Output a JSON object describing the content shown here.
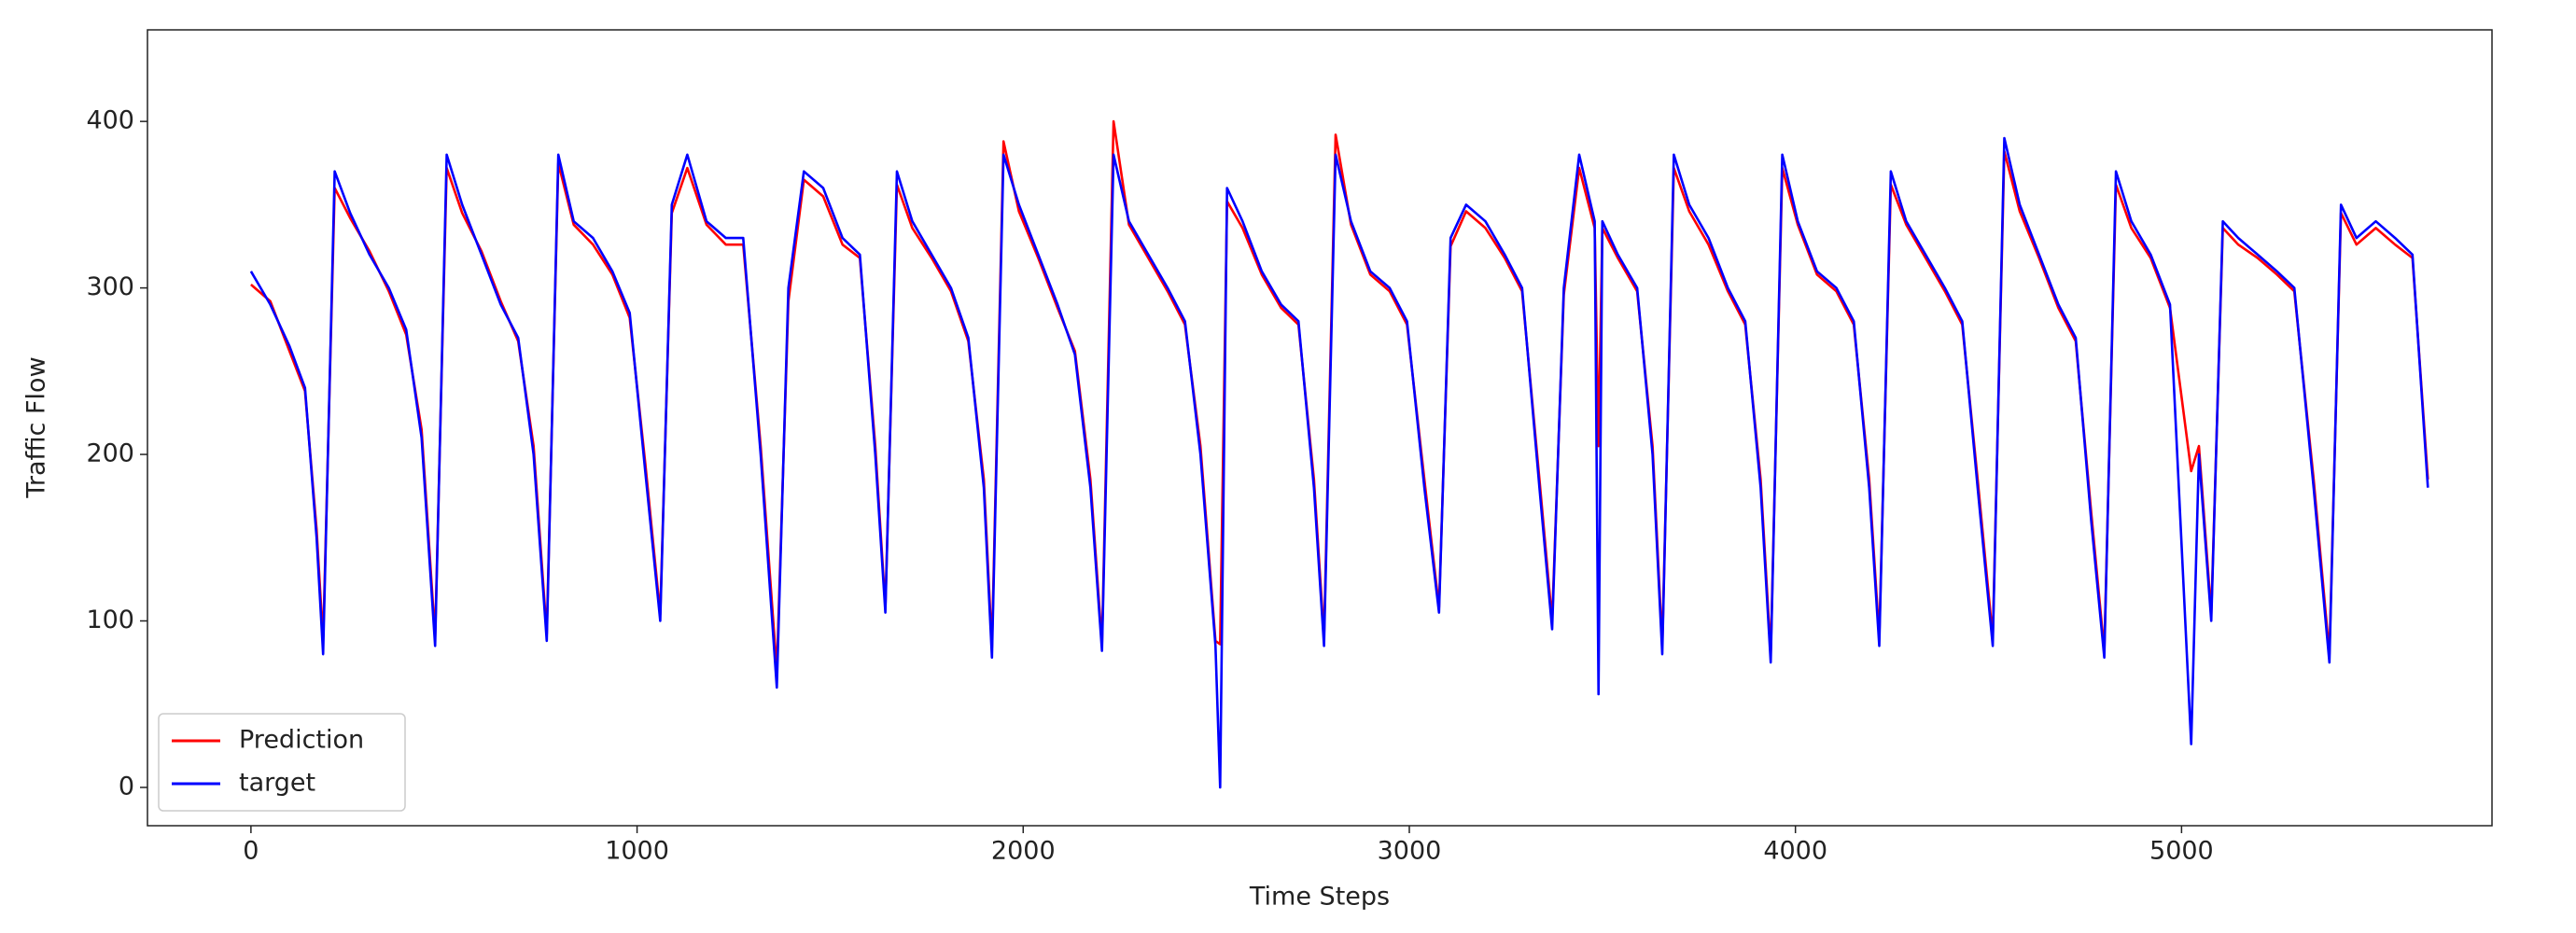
{
  "chart_data": {
    "type": "line",
    "xlabel": "Time Steps",
    "ylabel": "Traffic Flow",
    "xlim": [
      -268,
      5804
    ],
    "ylim": [
      -23,
      455
    ],
    "xticks": [
      0,
      1000,
      2000,
      3000,
      4000,
      5000
    ],
    "yticks": [
      0,
      100,
      200,
      300,
      400
    ],
    "grid": false,
    "legend": "lower left",
    "x": [
      0,
      50,
      100,
      140,
      170,
      187,
      217,
      257,
      307,
      357,
      402,
      442,
      477,
      507,
      547,
      597,
      647,
      692,
      732,
      766,
      796,
      836,
      886,
      936,
      981,
      1021,
      1060,
      1090,
      1130,
      1180,
      1230,
      1275,
      1320,
      1362,
      1392,
      1432,
      1482,
      1532,
      1577,
      1617,
      1643,
      1673,
      1713,
      1763,
      1813,
      1858,
      1898,
      1919,
      1949,
      1989,
      2039,
      2089,
      2134,
      2174,
      2204,
      2234,
      2274,
      2324,
      2374,
      2419,
      2459,
      2498,
      2510,
      2528,
      2568,
      2618,
      2668,
      2713,
      2753,
      2779,
      2809,
      2849,
      2899,
      2949,
      2994,
      3039,
      3077,
      3107,
      3147,
      3197,
      3247,
      3292,
      3337,
      3370,
      3400,
      3440,
      3480,
      3490,
      3500,
      3540,
      3590,
      3630,
      3655,
      3685,
      3725,
      3775,
      3825,
      3870,
      3910,
      3936,
      3966,
      4006,
      4056,
      4106,
      4151,
      4191,
      4217,
      4247,
      4287,
      4337,
      4387,
      4432,
      4472,
      4511,
      4541,
      4581,
      4631,
      4681,
      4726,
      4766,
      4800,
      4830,
      4870,
      4920,
      4970,
      5025,
      5045,
      5077,
      5107,
      5147,
      5197,
      5247,
      5292,
      5342,
      5383,
      5413,
      5453,
      5503,
      5553,
      5598,
      5638
    ],
    "series": [
      {
        "name": "Prediction",
        "color": "#ff0000",
        "values": [
          302,
          292,
          262,
          238,
          155,
          88,
          360,
          342,
          322,
          298,
          272,
          215,
          90,
          372,
          345,
          322,
          292,
          268,
          205,
          92,
          375,
          338,
          326,
          308,
          282,
          195,
          104,
          345,
          372,
          338,
          326,
          326,
          205,
          70,
          292,
          365,
          355,
          326,
          318,
          205,
          108,
          362,
          336,
          318,
          298,
          268,
          185,
          84,
          388,
          346,
          318,
          288,
          262,
          185,
          86,
          400,
          338,
          318,
          298,
          278,
          205,
          88,
          86,
          352,
          336,
          308,
          288,
          278,
          185,
          90,
          392,
          338,
          308,
          298,
          278,
          185,
          108,
          325,
          346,
          336,
          318,
          298,
          185,
          100,
          296,
          372,
          336,
          205,
          336,
          318,
          298,
          205,
          85,
          372,
          346,
          326,
          298,
          278,
          185,
          80,
          372,
          338,
          308,
          298,
          278,
          185,
          90,
          362,
          338,
          318,
          298,
          278,
          185,
          90,
          382,
          346,
          318,
          288,
          268,
          165,
          82,
          362,
          336,
          318,
          288,
          190,
          205,
          104,
          336,
          326,
          318,
          308,
          298,
          185,
          80,
          345,
          326,
          336,
          326,
          318,
          185
        ]
      },
      {
        "name": "target",
        "color": "#0000ff",
        "values": [
          310,
          290,
          265,
          240,
          150,
          80,
          370,
          345,
          320,
          300,
          275,
          210,
          85,
          380,
          350,
          320,
          290,
          270,
          200,
          88,
          380,
          340,
          330,
          310,
          285,
          190,
          100,
          350,
          380,
          340,
          330,
          330,
          200,
          60,
          300,
          370,
          360,
          330,
          320,
          200,
          105,
          370,
          340,
          320,
          300,
          270,
          180,
          78,
          380,
          350,
          320,
          290,
          260,
          180,
          82,
          380,
          340,
          320,
          300,
          280,
          200,
          85,
          0,
          360,
          340,
          310,
          290,
          280,
          180,
          85,
          380,
          340,
          310,
          300,
          280,
          180,
          105,
          330,
          350,
          340,
          320,
          300,
          180,
          95,
          300,
          380,
          340,
          56,
          340,
          320,
          300,
          200,
          80,
          380,
          350,
          330,
          300,
          280,
          180,
          75,
          380,
          340,
          310,
          300,
          280,
          180,
          85,
          370,
          340,
          320,
          300,
          280,
          180,
          85,
          390,
          350,
          320,
          290,
          270,
          160,
          78,
          370,
          340,
          320,
          290,
          26,
          200,
          100,
          340,
          330,
          320,
          310,
          300,
          180,
          75,
          350,
          330,
          340,
          330,
          320,
          180
        ]
      }
    ]
  }
}
